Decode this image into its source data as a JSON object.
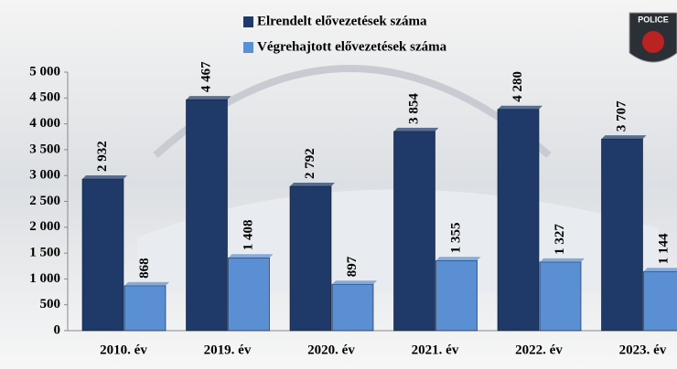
{
  "chart_data": {
    "type": "bar",
    "categories": [
      "2010. év",
      "2019. év",
      "2020. év",
      "2021. év",
      "2022. év",
      "2023. év"
    ],
    "series": [
      {
        "name": "Elrendelt elővezetések száma",
        "color": "#1f3a68",
        "values": [
          2932,
          4467,
          2792,
          3854,
          4280,
          3707
        ],
        "value_labels": [
          "2 932",
          "4 467",
          "2 792",
          "3 854",
          "4 280",
          "3 707"
        ]
      },
      {
        "name": "Végrehajtott elővezetések száma",
        "color": "#5b8fd4",
        "values": [
          868,
          1408,
          897,
          1355,
          1327,
          1144
        ],
        "value_labels": [
          "868",
          "1 408",
          "897",
          "1 355",
          "1 327",
          "1 144"
        ]
      }
    ],
    "ylim": [
      0,
      5000
    ],
    "yticks": [
      0,
      {
        "value": 500,
        "label": "500"
      },
      {
        "value": 1000,
        "label": "1 000"
      },
      {
        "value": 1500,
        "label": "1 500"
      },
      {
        "value": 2000,
        "label": "2 000"
      },
      {
        "value": 2500,
        "label": "2 500"
      },
      {
        "value": 3000,
        "label": "3 000"
      },
      {
        "value": 3500,
        "label": "3 500"
      },
      {
        "value": 4000,
        "label": "4 000"
      },
      {
        "value": 4500,
        "label": "4 500"
      },
      {
        "value": 5000,
        "label": "5 000"
      }
    ],
    "legend": "top"
  }
}
